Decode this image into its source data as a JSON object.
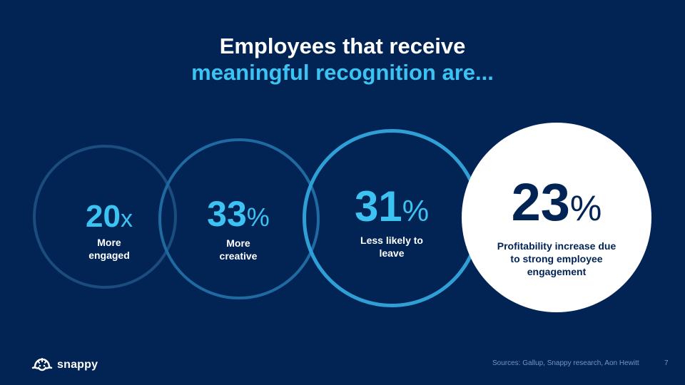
{
  "title": {
    "line1": "Employees that receive",
    "line2": "meaningful recognition are..."
  },
  "stats": [
    {
      "number": "20",
      "unit": "x",
      "description": "More engaged",
      "desc_lines": [
        "More",
        "engaged"
      ]
    },
    {
      "number": "33",
      "unit": "%",
      "description": "More creative",
      "desc_lines": [
        "More",
        "creative"
      ]
    },
    {
      "number": "31",
      "unit": "%",
      "description": "Less likely to leave",
      "desc_lines": [
        "Less likely to",
        "leave"
      ]
    },
    {
      "number": "23",
      "unit": "%",
      "description": "Profitability increase due to strong employee engagement",
      "desc_lines": [
        "Profitability increase due",
        "to strong employee",
        "engagement"
      ]
    }
  ],
  "footer": {
    "logo_text": "snappy",
    "sources": "Sources: Gallup, Snappy research, Aon Hewitt",
    "page_number": "7"
  },
  "colors": {
    "background": "#022454",
    "accent": "#3cc3f2",
    "white": "#ffffff"
  },
  "icons": {
    "logo": "snappy-logo-icon"
  }
}
